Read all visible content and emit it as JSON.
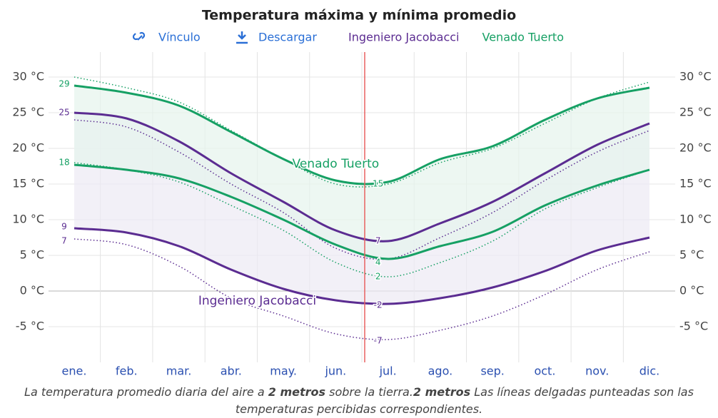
{
  "chart_data": {
    "type": "line",
    "title": "Temperatura máxima y mínima promedio",
    "buttons": [
      "Vínculo",
      "Descargar"
    ],
    "categories": [
      "ene.",
      "feb.",
      "mar.",
      "abr.",
      "may.",
      "jun.",
      "jul.",
      "ago.",
      "sep.",
      "oct.",
      "nov.",
      "dic."
    ],
    "series": [
      {
        "name": "Ingeniero Jacobacci",
        "color": "#5b2c91",
        "band": "#ece9f4",
        "high": [
          25,
          24.2,
          21,
          16.5,
          12.5,
          8.5,
          7,
          9.5,
          12.5,
          16.5,
          20.5,
          23.5
        ],
        "low": [
          8.8,
          8.2,
          6.3,
          3,
          0.3,
          -1.3,
          -1.8,
          -1,
          0.5,
          2.8,
          5.7,
          7.5
        ],
        "feels_high": [
          24,
          23,
          19.5,
          15,
          11,
          6,
          4.5,
          7.5,
          11,
          15.5,
          19.5,
          22.5
        ],
        "feels_low": [
          7.3,
          6.5,
          3.5,
          -1,
          -3.5,
          -6,
          -6.8,
          -5.5,
          -3.5,
          -0.5,
          3,
          5.5
        ]
      },
      {
        "name": "Venado Tuerto",
        "color": "#16a064",
        "band": "#e6f4ec",
        "high": [
          28.8,
          27.8,
          26,
          22.3,
          18.5,
          15.5,
          15.3,
          18.5,
          20.3,
          24,
          27,
          28.5
        ],
        "low": [
          17.7,
          17,
          15.8,
          13.2,
          10,
          6.5,
          4.5,
          6.3,
          8.3,
          12,
          14.8,
          17
        ],
        "feels_high": [
          30,
          28.5,
          26.5,
          22.5,
          18.5,
          15,
          15,
          18,
          20,
          23.5,
          27,
          29.3
        ],
        "feels_low": [
          18,
          17,
          15.3,
          12,
          8.5,
          4,
          2,
          4,
          7,
          11.5,
          14.5,
          17
        ]
      }
    ],
    "extremes": [
      {
        "series": 1,
        "category": 0,
        "value": 29
      },
      {
        "series": 0,
        "category": 0,
        "value": 25
      },
      {
        "series": 1,
        "category": 0,
        "value": 18
      },
      {
        "series": 0,
        "category": 0,
        "value": 9
      },
      {
        "series": 0,
        "category": 0,
        "value": 7
      },
      {
        "series": 1,
        "category": 6,
        "value": 15
      },
      {
        "series": 0,
        "category": 6,
        "value": 7
      },
      {
        "series": 0,
        "category": 6,
        "value": 4
      },
      {
        "series": 1,
        "category": 6,
        "value": 4
      },
      {
        "series": 1,
        "category": 6,
        "value": 2
      },
      {
        "series": 0,
        "category": 6,
        "value": -2
      },
      {
        "series": 0,
        "category": 6,
        "value": -7
      }
    ],
    "annotations": [
      {
        "text": "Venado Tuerto",
        "series": 1,
        "category": 5,
        "value": 17.8
      },
      {
        "text": "Ingeniero Jacobacci",
        "series": 0,
        "category": 3.5,
        "value": -1.4
      }
    ],
    "ylim": [
      -10,
      33.5
    ],
    "yticks": [
      {
        "value": -5,
        "label": "-5 °C"
      },
      {
        "value": 0,
        "label": "0 °C"
      },
      {
        "value": 5,
        "label": "5 °C"
      },
      {
        "value": 10,
        "label": "10 °C"
      },
      {
        "value": 15,
        "label": "15 °C"
      },
      {
        "value": 20,
        "label": "20 °C"
      },
      {
        "value": 25,
        "label": "25 °C"
      },
      {
        "value": 30,
        "label": "30 °C"
      }
    ],
    "grid": true,
    "caption": [
      "La temperatura promedio diaria del aire a ",
      "2 metros",
      " sobre la tierra.",
      "2 metros",
      " Las líneas delgadas punteadas son las temperaturas percibidas correspondientes."
    ]
  }
}
